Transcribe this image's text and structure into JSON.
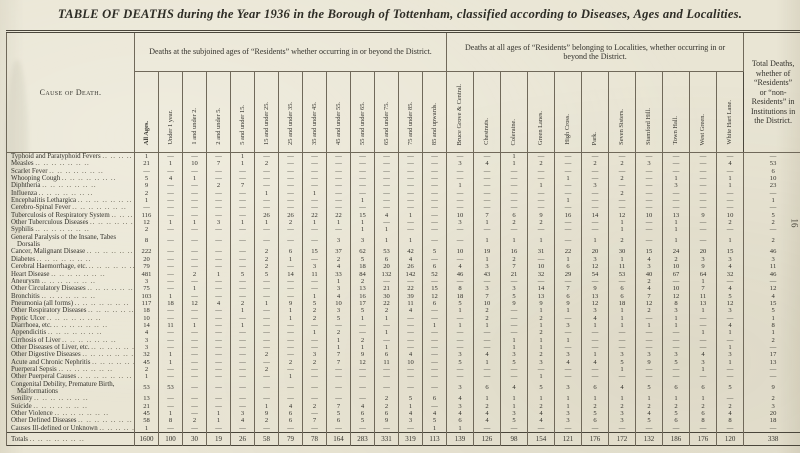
{
  "page": {
    "title": "TABLE OF DEATHS during the Year 1936 in the Borough of Tottenham, classified according to Diseases, Ages and Localities.",
    "page_number": "16"
  },
  "table": {
    "corner_header": "Cause of Death.",
    "group1_header": "Deaths at the subjoined ages of “Residents” whether occurring in or beyond the District.",
    "group2_header": "Deaths at all ages of “Residents” belonging to Localities, whether occurring in or beyond the District.",
    "total_header": "Total Deaths, whether of “Residents” or “non-Residents” in Institutions in the District.",
    "age_columns": [
      "All Ages.",
      "Under 1 year.",
      "1 and under 2.",
      "2 and under 5.",
      "5 and under 15.",
      "15 and under 25.",
      "25 and under 35.",
      "35 and under 45.",
      "45 and under 55.",
      "55 and under 65.",
      "65 and under 75.",
      "75 and under 85.",
      "85 and upwards."
    ],
    "locality_columns": [
      "Bruce Grove & Central.",
      "Chestnuts.",
      "Coleraine.",
      "Green Lanes.",
      "High Cross.",
      "Park.",
      "Seven Sisters.",
      "Stamford Hill.",
      "Town Hall.",
      "West Green.",
      "White Hart Lane."
    ],
    "rows": [
      {
        "cause": "Typhoid and Paratyphoid Fevers",
        "values": [
          "1",
          "—",
          "—",
          "—",
          "1",
          "—",
          "—",
          "—",
          "—",
          "—",
          "—",
          "—",
          "—",
          "—",
          "—",
          "1",
          "—",
          "—",
          "—",
          "—",
          "—",
          "—",
          "—",
          "—",
          "—"
        ]
      },
      {
        "cause": "Measles",
        "values": [
          "21",
          "1",
          "10",
          "7",
          "1",
          "2",
          "—",
          "—",
          "—",
          "—",
          "—",
          "—",
          "—",
          "3",
          "4",
          "1",
          "2",
          "—",
          "2",
          "2",
          "3",
          "—",
          "—",
          "4",
          "53"
        ]
      },
      {
        "cause": "Scarlet Fever",
        "values": [
          "—",
          "—",
          "—",
          "—",
          "—",
          "—",
          "—",
          "—",
          "—",
          "—",
          "—",
          "—",
          "—",
          "—",
          "—",
          "—",
          "—",
          "—",
          "—",
          "—",
          "—",
          "—",
          "—",
          "—",
          "6"
        ]
      },
      {
        "cause": "Whooping Cough",
        "values": [
          "5",
          "4",
          "1",
          "—",
          "—",
          "—",
          "—",
          "—",
          "—",
          "—",
          "—",
          "—",
          "—",
          "—",
          "—",
          "—",
          "—",
          "1",
          "—",
          "2",
          "—",
          "1",
          "—",
          "1",
          "10"
        ]
      },
      {
        "cause": "Diphtheria",
        "values": [
          "9",
          "—",
          "—",
          "2",
          "7",
          "—",
          "—",
          "—",
          "—",
          "—",
          "—",
          "—",
          "—",
          "1",
          "—",
          "—",
          "1",
          "—",
          "3",
          "—",
          "—",
          "3",
          "—",
          "1",
          "23"
        ]
      },
      {
        "cause": "Influenza",
        "values": [
          "2",
          "—",
          "—",
          "—",
          "—",
          "1",
          "—",
          "1",
          "—",
          "—",
          "—",
          "—",
          "—",
          "—",
          "—",
          "—",
          "—",
          "—",
          "—",
          "2",
          "—",
          "—",
          "—",
          "—",
          "—"
        ]
      },
      {
        "cause": "Encephalitis Lethargica",
        "values": [
          "1",
          "—",
          "—",
          "—",
          "—",
          "—",
          "—",
          "—",
          "—",
          "1",
          "—",
          "—",
          "—",
          "—",
          "—",
          "—",
          "—",
          "1",
          "—",
          "—",
          "—",
          "—",
          "—",
          "—",
          "1"
        ]
      },
      {
        "cause": "Cerebro-Spinal Fever",
        "values": [
          "—",
          "—",
          "—",
          "—",
          "—",
          "—",
          "—",
          "—",
          "—",
          "—",
          "—",
          "—",
          "—",
          "—",
          "—",
          "—",
          "—",
          "—",
          "—",
          "—",
          "—",
          "—",
          "—",
          "—",
          "—"
        ]
      },
      {
        "cause": "Tuberculosis of Respiratory System",
        "values": [
          "116",
          "—",
          "—",
          "—",
          "—",
          "26",
          "26",
          "22",
          "22",
          "15",
          "4",
          "1",
          "—",
          "10",
          "7",
          "6",
          "9",
          "16",
          "14",
          "12",
          "10",
          "13",
          "9",
          "10",
          "5"
        ]
      },
      {
        "cause": "Other Tuberculous Diseases",
        "values": [
          "12",
          "1",
          "1",
          "3",
          "1",
          "1",
          "2",
          "1",
          "1",
          "1",
          "—",
          "—",
          "—",
          "3",
          "1",
          "2",
          "2",
          "—",
          "—",
          "1",
          "—",
          "1",
          "—",
          "2",
          "2"
        ]
      },
      {
        "cause": "Syphilis",
        "values": [
          "2",
          "—",
          "—",
          "—",
          "—",
          "—",
          "—",
          "—",
          "—",
          "1",
          "1",
          "—",
          "—",
          "—",
          "—",
          "—",
          "—",
          "—",
          "—",
          "1",
          "—",
          "1",
          "—",
          "—",
          "—"
        ]
      },
      {
        "cause": "General Paralysis of the Insane, Tabes Dorsalis",
        "values": [
          "8",
          "—",
          "—",
          "—",
          "—",
          "—",
          "—",
          "—",
          "3",
          "3",
          "1",
          "1",
          "—",
          "—",
          "1",
          "1",
          "1",
          "—",
          "1",
          "2",
          "—",
          "1",
          "—",
          "1",
          "2"
        ]
      },
      {
        "cause": "Cancer, Malignant Disease",
        "values": [
          "222",
          "—",
          "—",
          "—",
          "—",
          "2",
          "6",
          "15",
          "37",
          "62",
          "53",
          "42",
          "5",
          "10",
          "19",
          "16",
          "31",
          "22",
          "20",
          "30",
          "15",
          "24",
          "20",
          "15",
          "46"
        ]
      },
      {
        "cause": "Diabetes",
        "values": [
          "20",
          "—",
          "—",
          "—",
          "—",
          "2",
          "1",
          "—",
          "2",
          "5",
          "6",
          "4",
          "—",
          "—",
          "1",
          "2",
          "—",
          "1",
          "3",
          "1",
          "4",
          "2",
          "3",
          "3",
          "3"
        ]
      },
      {
        "cause": "Cerebral Haemorrhage, etc.",
        "values": [
          "79",
          "—",
          "—",
          "—",
          "—",
          "2",
          "—",
          "3",
          "4",
          "18",
          "20",
          "26",
          "6",
          "4",
          "3",
          "7",
          "10",
          "6",
          "12",
          "11",
          "3",
          "10",
          "9",
          "4",
          "11"
        ]
      },
      {
        "cause": "Heart Disease",
        "values": [
          "481",
          "—",
          "2",
          "1",
          "5",
          "5",
          "14",
          "11",
          "33",
          "84",
          "132",
          "142",
          "52",
          "46",
          "43",
          "21",
          "32",
          "29",
          "54",
          "53",
          "40",
          "67",
          "64",
          "32",
          "46"
        ]
      },
      {
        "cause": "Aneurysm",
        "values": [
          "3",
          "—",
          "—",
          "—",
          "—",
          "—",
          "—",
          "—",
          "1",
          "2",
          "—",
          "—",
          "—",
          "—",
          "—",
          "—",
          "—",
          "—",
          "—",
          "—",
          "2",
          "—",
          "1",
          "—",
          "—"
        ]
      },
      {
        "cause": "Other Circulatory Diseases",
        "values": [
          "75",
          "—",
          "1",
          "—",
          "—",
          "—",
          "—",
          "—",
          "3",
          "13",
          "21",
          "22",
          "15",
          "8",
          "3",
          "3",
          "14",
          "7",
          "9",
          "6",
          "4",
          "10",
          "7",
          "4",
          "12"
        ]
      },
      {
        "cause": "Bronchitis",
        "values": [
          "103",
          "1",
          "—",
          "—",
          "—",
          "—",
          "—",
          "1",
          "4",
          "16",
          "30",
          "39",
          "12",
          "18",
          "7",
          "5",
          "13",
          "6",
          "13",
          "6",
          "7",
          "12",
          "11",
          "5",
          "4"
        ]
      },
      {
        "cause": "Pneumonia (all forms)",
        "values": [
          "117",
          "18",
          "12",
          "4",
          "2",
          "1",
          "9",
          "5",
          "10",
          "17",
          "22",
          "11",
          "6",
          "5",
          "10",
          "9",
          "9",
          "9",
          "12",
          "18",
          "12",
          "8",
          "13",
          "12",
          "15"
        ]
      },
      {
        "cause": "Other Respiratory Diseases",
        "values": [
          "18",
          "—",
          "—",
          "—",
          "1",
          "—",
          "1",
          "2",
          "3",
          "5",
          "2",
          "4",
          "—",
          "1",
          "2",
          "—",
          "1",
          "1",
          "3",
          "1",
          "2",
          "3",
          "1",
          "3",
          "5"
        ]
      },
      {
        "cause": "Peptic Ulcer",
        "values": [
          "10",
          "—",
          "—",
          "—",
          "—",
          "—",
          "1",
          "2",
          "5",
          "1",
          "1",
          "—",
          "—",
          "—",
          "2",
          "—",
          "2",
          "—",
          "4",
          "1",
          "—",
          "1",
          "—",
          "—",
          "1"
        ]
      },
      {
        "cause": "Diarrhoea, etc.",
        "values": [
          "14",
          "11",
          "1",
          "—",
          "1",
          "—",
          "—",
          "—",
          "—",
          "—",
          "—",
          "—",
          "1",
          "1",
          "1",
          "—",
          "1",
          "3",
          "1",
          "1",
          "1",
          "1",
          "—",
          "4",
          "8"
        ]
      },
      {
        "cause": "Appendicitis",
        "values": [
          "4",
          "—",
          "—",
          "—",
          "—",
          "—",
          "—",
          "1",
          "2",
          "—",
          "1",
          "—",
          "—",
          "—",
          "—",
          "—",
          "2",
          "—",
          "—",
          "—",
          "—",
          "—",
          "1",
          "1",
          "1"
        ]
      },
      {
        "cause": "Cirrhosis of Liver",
        "values": [
          "3",
          "—",
          "—",
          "—",
          "—",
          "—",
          "—",
          "—",
          "1",
          "2",
          "—",
          "—",
          "—",
          "—",
          "—",
          "1",
          "1",
          "1",
          "—",
          "—",
          "—",
          "—",
          "—",
          "—",
          "2"
        ]
      },
      {
        "cause": "Other Diseases of Liver, etc.",
        "values": [
          "3",
          "—",
          "—",
          "—",
          "—",
          "—",
          "—",
          "—",
          "1",
          "1",
          "1",
          "—",
          "—",
          "—",
          "—",
          "1",
          "1",
          "—",
          "—",
          "—",
          "—",
          "—",
          "—",
          "1",
          "—"
        ]
      },
      {
        "cause": "Other Digestive Diseases",
        "values": [
          "32",
          "1",
          "—",
          "—",
          "—",
          "2",
          "—",
          "3",
          "7",
          "9",
          "6",
          "4",
          "—",
          "3",
          "4",
          "3",
          "2",
          "3",
          "1",
          "3",
          "3",
          "3",
          "4",
          "3",
          "17"
        ]
      },
      {
        "cause": "Acute and Chronic Nephritis",
        "values": [
          "45",
          "1",
          "—",
          "—",
          "—",
          "—",
          "2",
          "2",
          "7",
          "12",
          "11",
          "10",
          "—",
          "5",
          "1",
          "5",
          "3",
          "4",
          "4",
          "5",
          "9",
          "5",
          "3",
          "1",
          "13"
        ]
      },
      {
        "cause": "Puerperal Sepsis",
        "values": [
          "2",
          "—",
          "—",
          "—",
          "—",
          "2",
          "—",
          "—",
          "—",
          "—",
          "—",
          "—",
          "—",
          "—",
          "—",
          "—",
          "—",
          "—",
          "—",
          "1",
          "—",
          "—",
          "1",
          "—",
          "—"
        ]
      },
      {
        "cause": "Other Puerperal Causes",
        "values": [
          "1",
          "—",
          "—",
          "—",
          "—",
          "—",
          "1",
          "—",
          "—",
          "—",
          "—",
          "—",
          "—",
          "—",
          "—",
          "—",
          "1",
          "—",
          "—",
          "—",
          "—",
          "—",
          "—",
          "—",
          "—"
        ]
      },
      {
        "cause": "Congenital Debility, Premature Birth, Malformations",
        "values": [
          "53",
          "53",
          "—",
          "—",
          "—",
          "—",
          "—",
          "—",
          "—",
          "—",
          "—",
          "—",
          "—",
          "3",
          "6",
          "4",
          "5",
          "3",
          "6",
          "4",
          "5",
          "6",
          "6",
          "5",
          "9"
        ]
      },
      {
        "cause": "Senility",
        "values": [
          "13",
          "—",
          "—",
          "—",
          "—",
          "—",
          "—",
          "—",
          "—",
          "—",
          "2",
          "5",
          "6",
          "4",
          "1",
          "1",
          "1",
          "1",
          "1",
          "1",
          "1",
          "1",
          "1",
          "—",
          "2"
        ]
      },
      {
        "cause": "Suicide",
        "values": [
          "21",
          "—",
          "—",
          "—",
          "—",
          "1",
          "4",
          "2",
          "7",
          "4",
          "2",
          "1",
          "—",
          "3",
          "2",
          "1",
          "2",
          "1",
          "2",
          "2",
          "2",
          "2",
          "2",
          "2",
          "3"
        ]
      },
      {
        "cause": "Other Violence",
        "values": [
          "45",
          "1",
          "—",
          "1",
          "3",
          "9",
          "6",
          "—",
          "5",
          "6",
          "6",
          "4",
          "4",
          "4",
          "4",
          "3",
          "4",
          "3",
          "5",
          "3",
          "4",
          "5",
          "6",
          "4",
          "20"
        ]
      },
      {
        "cause": "Other Defined Diseases",
        "values": [
          "58",
          "8",
          "2",
          "1",
          "4",
          "2",
          "6",
          "7",
          "6",
          "5",
          "9",
          "3",
          "5",
          "6",
          "4",
          "5",
          "4",
          "3",
          "6",
          "3",
          "5",
          "6",
          "8",
          "8",
          "18"
        ]
      },
      {
        "cause": "Causes Ill-defined or Unknown",
        "values": [
          "1",
          "—",
          "—",
          "—",
          "—",
          "—",
          "—",
          "—",
          "—",
          "—",
          "—",
          "—",
          "1",
          "1",
          "—",
          "—",
          "—",
          "—",
          "—",
          "—",
          "—",
          "—",
          "—",
          "—",
          "—"
        ]
      }
    ],
    "totals": {
      "label": "Totals",
      "values": [
        "1600",
        "100",
        "30",
        "19",
        "26",
        "58",
        "79",
        "78",
        "164",
        "283",
        "331",
        "319",
        "113",
        "139",
        "126",
        "98",
        "154",
        "121",
        "176",
        "172",
        "132",
        "186",
        "176",
        "120",
        "338"
      ]
    }
  }
}
